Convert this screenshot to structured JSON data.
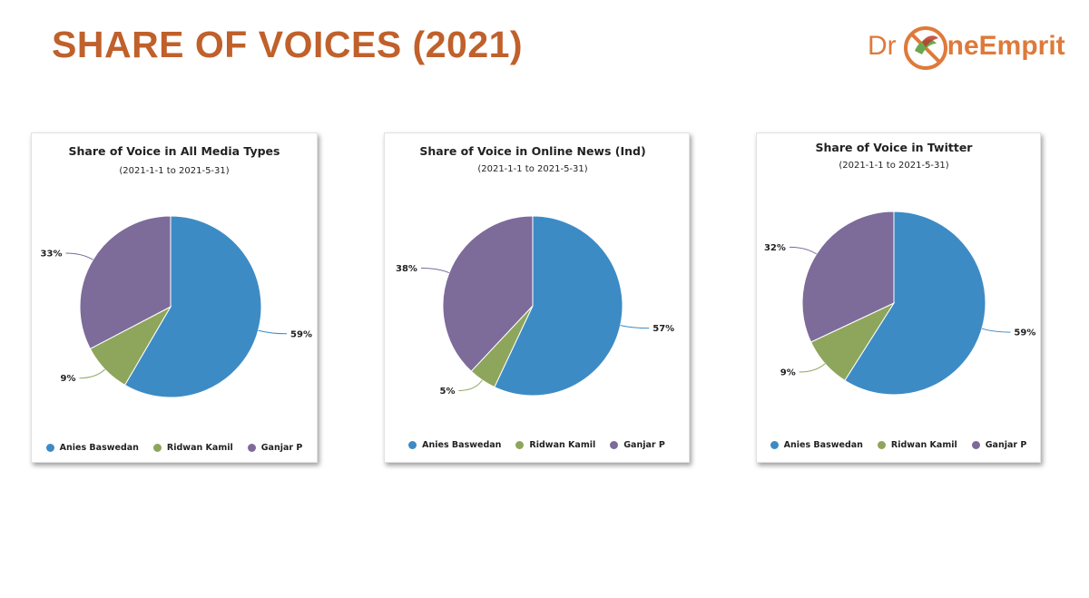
{
  "slide": {
    "title": "SHARE OF VOICES (2021)",
    "logo": {
      "text_prefix": "Dr",
      "text_suffix": "neEmprit",
      "brand_color": "#de7a3a"
    }
  },
  "legend": [
    {
      "name": "Anies Baswedan",
      "color": "#3d8bc4"
    },
    {
      "name": "Ridwan Kamil",
      "color": "#8da65c"
    },
    {
      "name": "Ganjar P",
      "color": "#7d6b9a"
    }
  ],
  "chart_data": [
    {
      "type": "pie",
      "title": "Share of Voice in All Media Types",
      "subtitle": "(2021-1-1 to 2021-5-31)",
      "slices": [
        {
          "name": "Anies Baswedan",
          "value": 59,
          "label": "59%"
        },
        {
          "name": "Ridwan Kamil",
          "value": 9,
          "label": "9%"
        },
        {
          "name": "Ganjar P",
          "value": 33,
          "label": "33%"
        }
      ],
      "legend_position": "bottom"
    },
    {
      "type": "pie",
      "title": "Share of Voice in Online News (Ind)",
      "subtitle": "(2021-1-1 to 2021-5-31)",
      "slices": [
        {
          "name": "Anies Baswedan",
          "value": 57,
          "label": "57%"
        },
        {
          "name": "Ridwan Kamil",
          "value": 5,
          "label": "5%"
        },
        {
          "name": "Ganjar P",
          "value": 38,
          "label": "38%"
        }
      ],
      "legend_position": "bottom"
    },
    {
      "type": "pie",
      "title": "Share of Voice in Twitter",
      "subtitle": "(2021-1-1 to 2021-5-31)",
      "slices": [
        {
          "name": "Anies Baswedan",
          "value": 59,
          "label": "59%"
        },
        {
          "name": "Ridwan Kamil",
          "value": 9,
          "label": "9%"
        },
        {
          "name": "Ganjar P",
          "value": 32,
          "label": "32%"
        }
      ],
      "legend_position": "bottom"
    }
  ]
}
